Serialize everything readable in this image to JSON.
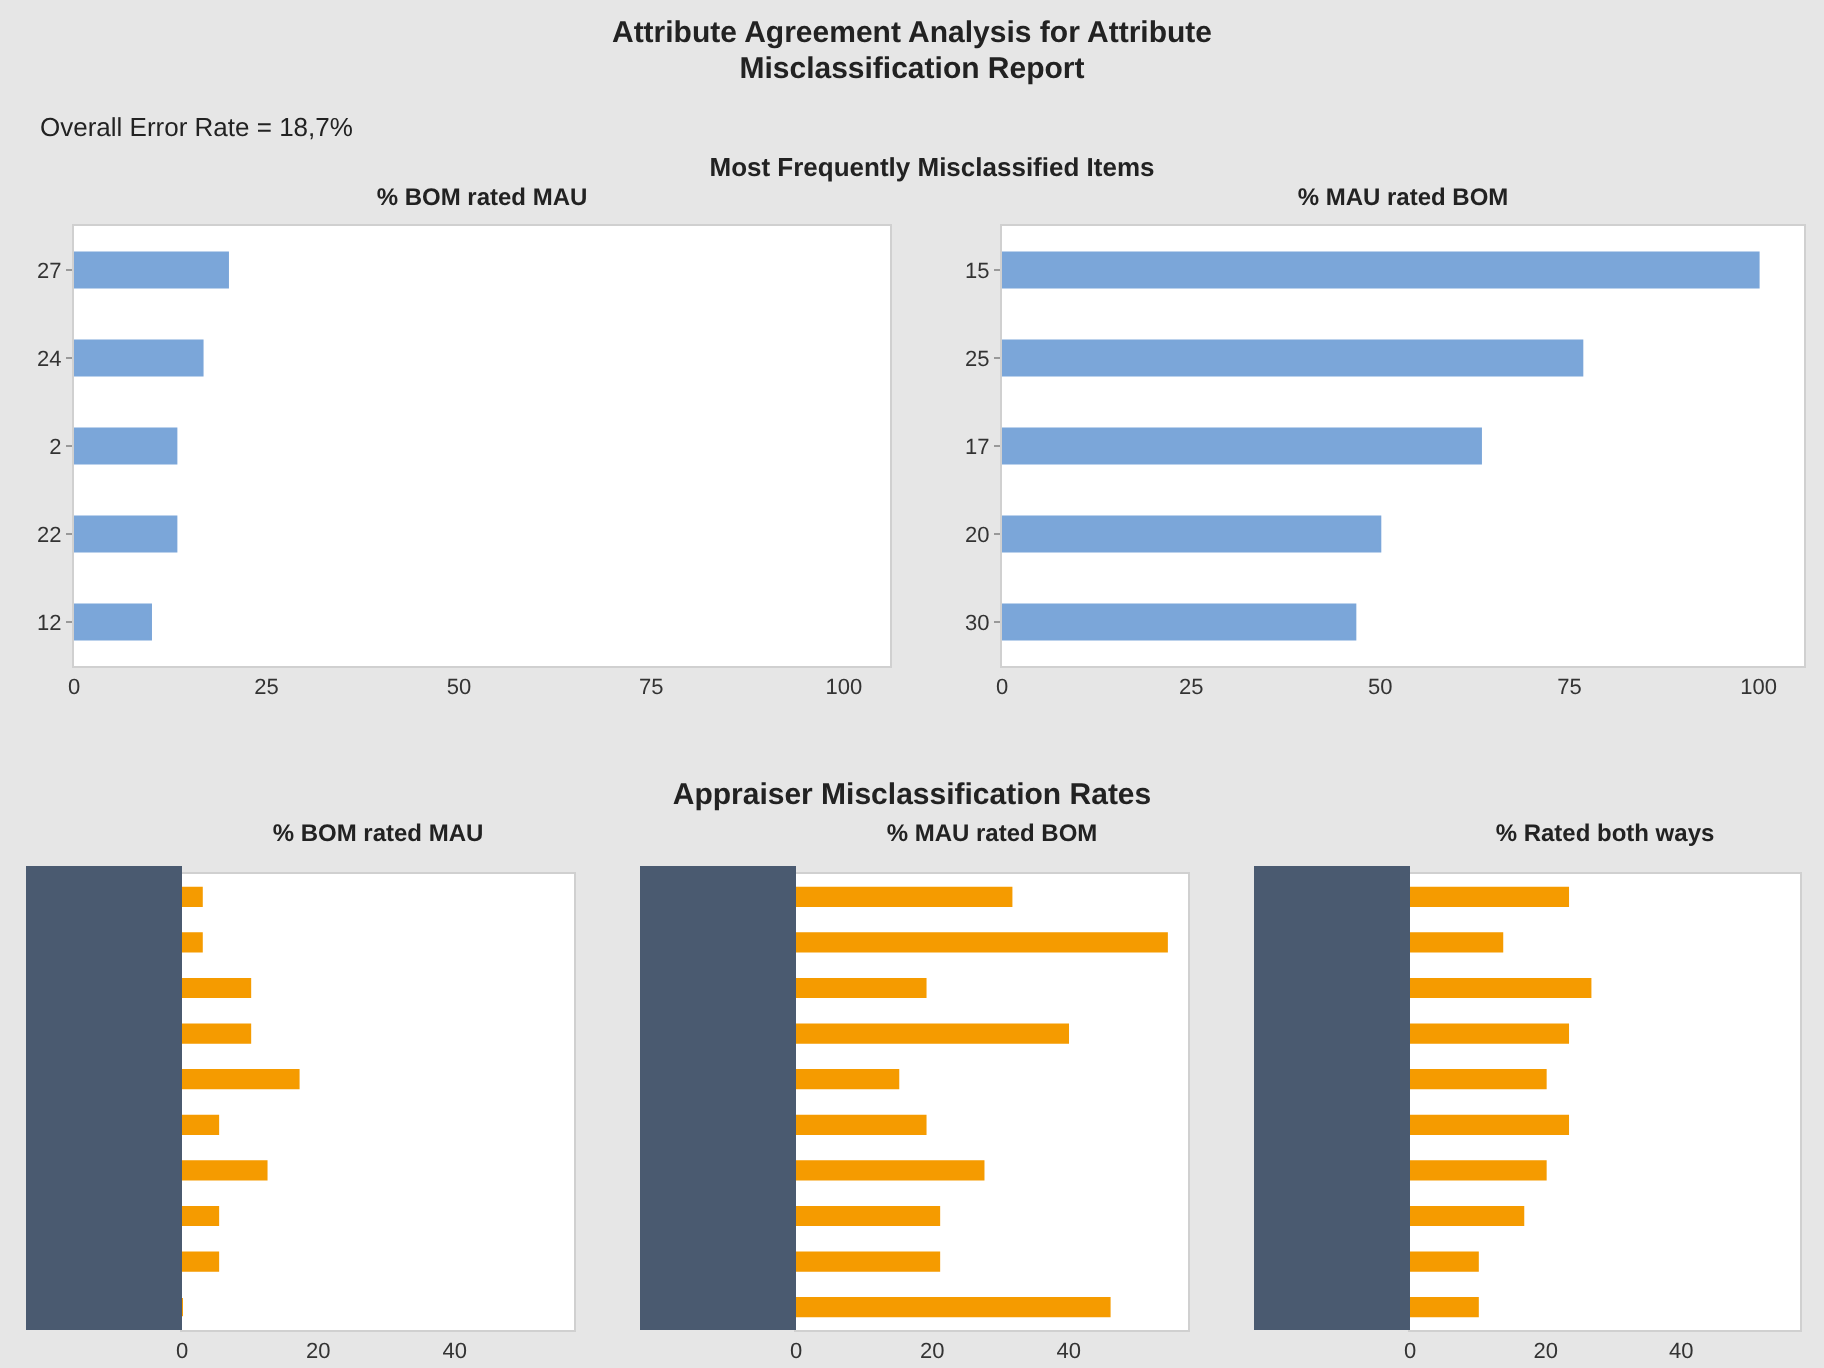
{
  "chart_data": [
    {
      "type": "other",
      "title": "Attribute Agreement Analysis for Attribute\nMisclassification Report",
      "annotations": [
        "Overall Error Rate = 18,7%",
        "Most Frequently Misclassified Items"
      ]
    },
    {
      "type": "bar",
      "orientation": "horizontal",
      "title": "% BOM rated MAU",
      "categories": [
        "27",
        "24",
        "2",
        "22",
        "12"
      ],
      "values": [
        20,
        16.7,
        13.3,
        13.3,
        10
      ],
      "color": "#7ba6d9",
      "xlim": [
        0,
        106
      ],
      "xticks": [
        0,
        25,
        50,
        75,
        100
      ]
    },
    {
      "type": "bar",
      "orientation": "horizontal",
      "title": "% MAU rated BOM",
      "categories": [
        "15",
        "25",
        "17",
        "20",
        "30"
      ],
      "values": [
        100,
        76.7,
        63.3,
        50,
        46.7
      ],
      "color": "#7ba6d9",
      "xlim": [
        0,
        106
      ],
      "xticks": [
        0,
        25,
        50,
        75,
        100
      ]
    },
    {
      "type": "other",
      "title": "Appraiser Misclassification Rates"
    },
    {
      "type": "bar",
      "orientation": "horizontal",
      "title": "% BOM rated MAU",
      "categories": [
        null,
        null,
        null,
        null,
        null,
        null,
        null,
        null,
        null,
        null
      ],
      "values": [
        2.9,
        2.9,
        10,
        10,
        17.1,
        5.3,
        12.4,
        5.3,
        5.3,
        0
      ],
      "color": "#f59b00",
      "xlim": [
        0,
        57.5
      ],
      "xticks": [
        0,
        20,
        40
      ]
    },
    {
      "type": "bar",
      "orientation": "horizontal",
      "title": "% MAU rated BOM",
      "categories": [
        null,
        null,
        null,
        null,
        null,
        null,
        null,
        null,
        null,
        null
      ],
      "values": [
        31.6,
        54.4,
        19,
        39.9,
        15,
        19,
        27.5,
        21,
        21,
        46
      ],
      "color": "#f59b00",
      "xlim": [
        0,
        57.5
      ],
      "xticks": [
        0,
        20,
        40
      ]
    },
    {
      "type": "bar",
      "orientation": "horizontal",
      "title": "% Rated both ways",
      "categories": [
        null,
        null,
        null,
        null,
        null,
        null,
        null,
        null,
        null,
        null
      ],
      "values": [
        23.3,
        13.6,
        26.6,
        23.3,
        20,
        23.3,
        20,
        16.7,
        10,
        10
      ],
      "color": "#f59b00",
      "xlim": [
        0,
        57.5
      ],
      "xticks": [
        0,
        20,
        40
      ]
    }
  ]
}
